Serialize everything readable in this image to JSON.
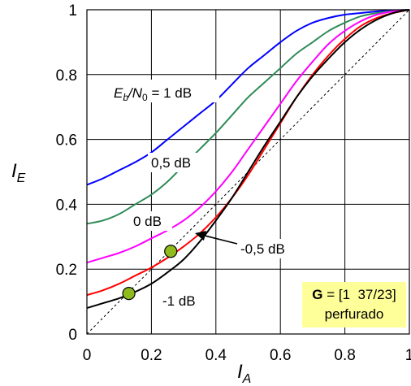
{
  "chart_data": {
    "type": "line",
    "xlabel": "I",
    "xlabel_sub": "A",
    "ylabel": "I",
    "ylabel_sub": "E",
    "xlim": [
      0,
      1
    ],
    "ylim": [
      0,
      1
    ],
    "grid": true,
    "x_ticks": [
      "0",
      "0.2",
      "0.4",
      "0.6",
      "0.8",
      "1"
    ],
    "y_ticks": [
      "0",
      "0.2",
      "0.4",
      "0.6",
      "0.8",
      "1"
    ],
    "series": [
      {
        "name": "1 dB",
        "color": "#0000ff",
        "x": [
          0,
          0.05,
          0.1,
          0.15,
          0.2,
          0.25,
          0.3,
          0.35,
          0.4,
          0.45,
          0.5,
          0.55,
          0.6,
          0.65,
          0.7,
          0.75,
          0.8,
          0.85,
          0.9,
          0.95,
          1
        ],
        "y": [
          0.46,
          0.48,
          0.505,
          0.53,
          0.56,
          0.6,
          0.64,
          0.68,
          0.72,
          0.77,
          0.82,
          0.86,
          0.9,
          0.935,
          0.96,
          0.975,
          0.985,
          0.99,
          0.995,
          0.998,
          1
        ]
      },
      {
        "name": "0,5 dB",
        "color": "#2e8b57",
        "x": [
          0,
          0.05,
          0.1,
          0.15,
          0.2,
          0.25,
          0.3,
          0.35,
          0.4,
          0.45,
          0.5,
          0.55,
          0.6,
          0.65,
          0.7,
          0.75,
          0.8,
          0.85,
          0.9,
          0.95,
          1
        ],
        "y": [
          0.34,
          0.35,
          0.37,
          0.4,
          0.43,
          0.47,
          0.52,
          0.57,
          0.62,
          0.675,
          0.73,
          0.775,
          0.82,
          0.865,
          0.9,
          0.935,
          0.96,
          0.98,
          0.99,
          0.996,
          1
        ]
      },
      {
        "name": "0 dB",
        "color": "#ff00ff",
        "x": [
          0,
          0.05,
          0.1,
          0.15,
          0.2,
          0.25,
          0.3,
          0.35,
          0.4,
          0.45,
          0.5,
          0.55,
          0.6,
          0.65,
          0.7,
          0.75,
          0.8,
          0.85,
          0.9,
          0.95,
          1
        ],
        "y": [
          0.22,
          0.235,
          0.25,
          0.27,
          0.295,
          0.32,
          0.35,
          0.39,
          0.44,
          0.5,
          0.57,
          0.64,
          0.71,
          0.78,
          0.84,
          0.895,
          0.935,
          0.965,
          0.985,
          0.995,
          1
        ]
      },
      {
        "name": "-0,5 dB",
        "color": "#ff0000",
        "x": [
          0,
          0.05,
          0.1,
          0.15,
          0.2,
          0.25,
          0.3,
          0.35,
          0.4,
          0.45,
          0.5,
          0.55,
          0.6,
          0.65,
          0.7,
          0.75,
          0.8,
          0.85,
          0.9,
          0.95,
          1
        ],
        "y": [
          0.12,
          0.135,
          0.155,
          0.18,
          0.205,
          0.235,
          0.27,
          0.31,
          0.36,
          0.42,
          0.49,
          0.57,
          0.65,
          0.73,
          0.8,
          0.86,
          0.91,
          0.95,
          0.975,
          0.99,
          1
        ]
      },
      {
        "name": "-1 dB",
        "color": "#000000",
        "x": [
          0,
          0.05,
          0.1,
          0.15,
          0.2,
          0.25,
          0.3,
          0.35,
          0.4,
          0.45,
          0.5,
          0.55,
          0.6,
          0.65,
          0.7,
          0.75,
          0.8,
          0.85,
          0.9,
          0.95,
          1
        ],
        "y": [
          0.08,
          0.095,
          0.11,
          0.13,
          0.155,
          0.19,
          0.23,
          0.285,
          0.35,
          0.42,
          0.5,
          0.58,
          0.655,
          0.73,
          0.795,
          0.85,
          0.9,
          0.94,
          0.97,
          0.99,
          1
        ]
      },
      {
        "name": "",
        "color": "#000000",
        "dashed": true,
        "x": [
          0,
          1
        ],
        "y": [
          0,
          1
        ]
      }
    ],
    "markers": [
      {
        "x": 0.13,
        "y": 0.125,
        "color": "#8fbc1c"
      },
      {
        "x": 0.26,
        "y": 0.255,
        "color": "#8fbc1c"
      }
    ],
    "annotations": {
      "curve_1db": {
        "prefix_a": "E",
        "sub_a": "b",
        "slash": "/N",
        "sub_b": "0",
        "suffix": " = 1 dB"
      },
      "curve_05db": "0,5 dB",
      "curve_0db": "0 dB",
      "curve_m05db": "-0,5 dB",
      "curve_m1db": "-1 dB"
    },
    "info_box": {
      "line1_bold": "G",
      "line1_rest": " = [1  37/23]",
      "line2": "perfurado",
      "background": "#ffff99"
    }
  }
}
